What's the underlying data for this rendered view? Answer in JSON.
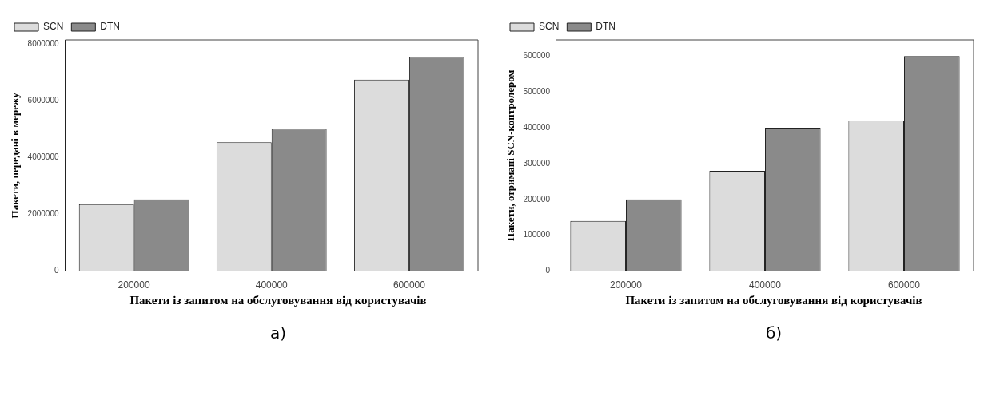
{
  "chart_data": [
    {
      "type": "bar",
      "xlabel": "Пакети із запитом на обслуговування від користувачів",
      "ylabel": "Пакети, передані в мережу",
      "categories": [
        "200000",
        "400000",
        "600000"
      ],
      "series": [
        {
          "name": "SCN",
          "color": "#dcdcdc",
          "values": [
            2360000,
            4540000,
            6750000
          ]
        },
        {
          "name": "DTN",
          "color": "#8a8a8a",
          "values": [
            2530000,
            5020000,
            7550000
          ]
        }
      ],
      "ylim": [
        0,
        8150000
      ],
      "yticks": [
        0,
        2000000,
        4000000,
        6000000,
        8000000
      ],
      "legend": "top left",
      "annotations": [
        "а)"
      ]
    },
    {
      "type": "bar",
      "xlabel": "Пакети із запитом на обслуговування від користувачів",
      "ylabel": "Пакети, отримані SCN-контролером",
      "categories": [
        "200000",
        "400000",
        "600000"
      ],
      "series": [
        {
          "name": "SCN",
          "color": "#dcdcdc",
          "values": [
            140000,
            280000,
            420000
          ]
        },
        {
          "name": "DTN",
          "color": "#8a8a8a",
          "values": [
            200000,
            400000,
            600000
          ]
        }
      ],
      "ylim": [
        0,
        645000
      ],
      "yticks": [
        0,
        100000,
        200000,
        300000,
        400000,
        500000,
        600000
      ],
      "legend": "top left",
      "annotations": [
        "б)"
      ]
    }
  ]
}
